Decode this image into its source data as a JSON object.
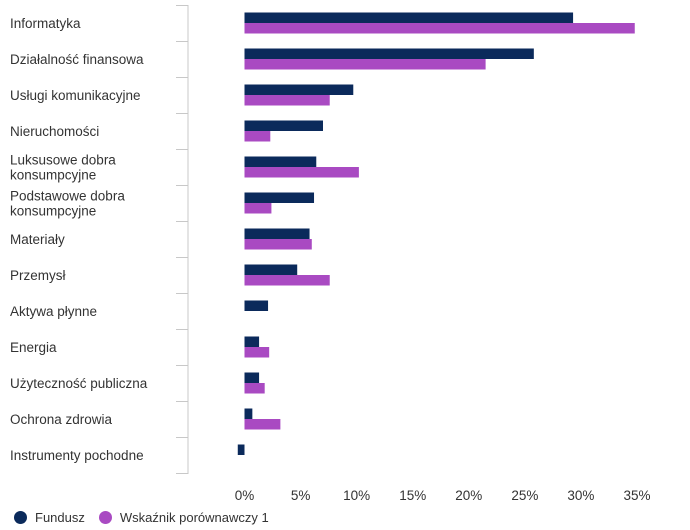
{
  "chart_data": {
    "type": "bar",
    "orientation": "horizontal",
    "categories": [
      [
        "Informatyka"
      ],
      [
        "Działalność finansowa"
      ],
      [
        "Usługi komunikacyjne"
      ],
      [
        "Nieruchomości"
      ],
      [
        "Luksusowe dobra",
        "konsumpcyjne"
      ],
      [
        "Podstawowe dobra",
        "konsumpcyjne"
      ],
      [
        "Materiały"
      ],
      [
        "Przemysł"
      ],
      [
        "Aktywa płynne"
      ],
      [
        "Energia"
      ],
      [
        "Użyteczność publiczna"
      ],
      [
        "Ochrona zdrowia"
      ],
      [
        "Instrumenty pochodne"
      ]
    ],
    "series": [
      {
        "name": "Fundusz",
        "color": "#0b2a5b",
        "values": [
          29.3,
          25.8,
          9.7,
          7.0,
          6.4,
          6.2,
          5.8,
          4.7,
          2.1,
          1.3,
          1.3,
          0.7,
          -0.6
        ]
      },
      {
        "name": "Wskaźnik porównawczy 1",
        "color": "#a94ac2",
        "values": [
          34.8,
          21.5,
          7.6,
          2.3,
          10.2,
          2.4,
          6.0,
          7.6,
          null,
          2.2,
          1.8,
          3.2,
          null
        ]
      }
    ],
    "xlim": [
      -1.5,
      39
    ],
    "xticks": [
      0,
      5,
      10,
      15,
      20,
      25,
      30,
      35
    ],
    "xtick_labels": [
      "0%",
      "5%",
      "10%",
      "15%",
      "20%",
      "25%",
      "30%",
      "35%"
    ],
    "legend_position": "bottom-left",
    "grid": false
  }
}
